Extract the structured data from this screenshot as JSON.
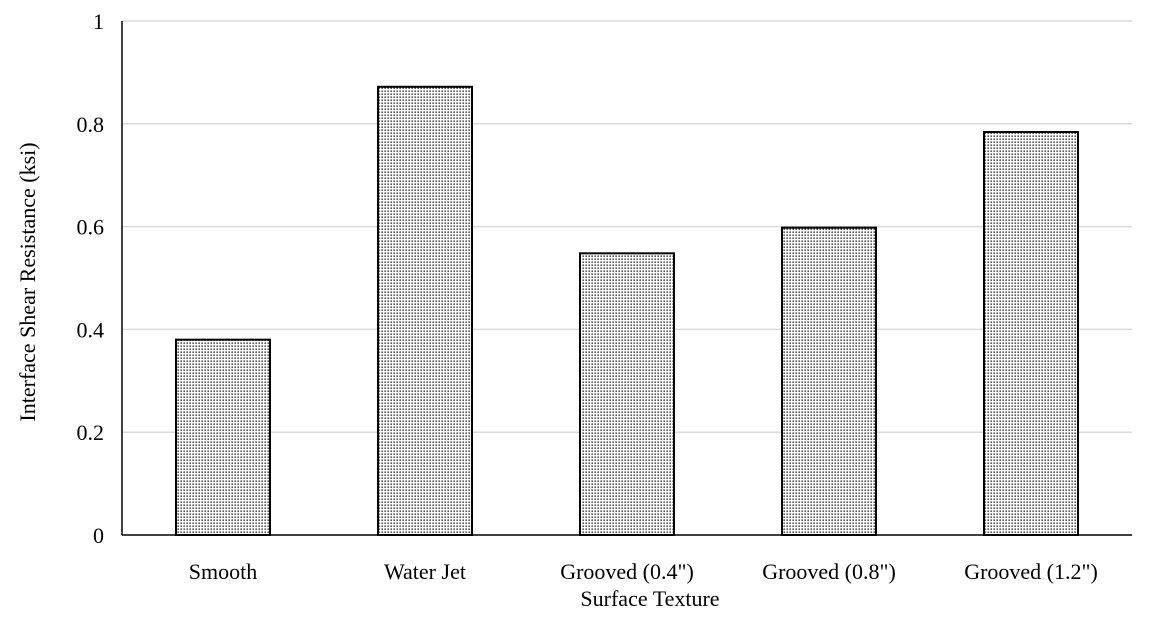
{
  "chart_data": {
    "type": "bar",
    "title": "",
    "xlabel": "Surface Texture",
    "ylabel": "Interface Shear Resistance (ksi)",
    "categories": [
      "Smooth",
      "Water Jet",
      "Grooved (0.4\")",
      "Grooved (0.8\")",
      "Grooved (1.2\")"
    ],
    "values": [
      0.38,
      0.872,
      0.548,
      0.598,
      0.784
    ],
    "ylim": [
      0,
      1
    ],
    "yticks": [
      "0",
      "0.2",
      "0.4",
      "0.6",
      "0.8",
      "1"
    ],
    "grid": true,
    "legend": "none",
    "colors": {
      "bar_fill": "#ffffff",
      "bar_dots": "#000000",
      "bar_stroke": "#000000",
      "gridline": "#d9d9d9",
      "axis": "#000000"
    }
  }
}
